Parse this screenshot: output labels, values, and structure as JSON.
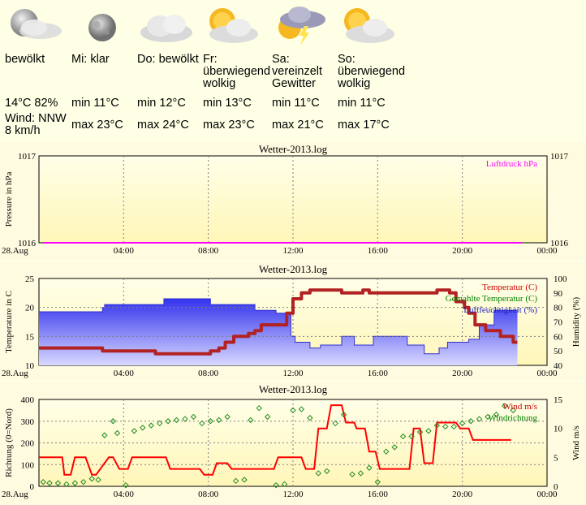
{
  "forecast": {
    "days": [
      {
        "icon": "moon-cloudy-icon",
        "condition": "bewölkt",
        "line1": "14°C 82%",
        "line2": "Wind: NNW 8 km/h"
      },
      {
        "icon": "moon-icon",
        "condition": "Mi: klar",
        "min": "min 11°C",
        "max": "max 23°C"
      },
      {
        "icon": "cloud-icon",
        "condition": "Do: bewölkt",
        "min": "min 12°C",
        "max": "max 24°C"
      },
      {
        "icon": "sun-cloud-icon",
        "condition": "Fr: überwiegend wolkig",
        "min": "min 13°C",
        "max": "max 23°C"
      },
      {
        "icon": "thunderstorm-icon",
        "condition": "Sa: vereinzelt Gewitter",
        "min": "min 11°C",
        "max": "max 21°C"
      },
      {
        "icon": "sun-cloud-icon",
        "condition": "So: überwiegend wolkig",
        "min": "min 11°C",
        "max": "max 17°C"
      }
    ]
  },
  "colors": {
    "pressure": "#ff00ff",
    "temperature": "#b22222",
    "temperature_label": "#cc0000",
    "humidity": "#4040ff",
    "dew": "#008000",
    "wind": "#ff0000",
    "direction": "#228b22",
    "grid": "#808080"
  },
  "chart_data": [
    {
      "type": "line",
      "title": "Wetter-2013.log",
      "ylabel": "Pressure in hPa",
      "ylim": [
        1016,
        1017
      ],
      "y_ticks": [
        "1016",
        "1017"
      ],
      "y2_ticks": [
        "1016",
        "1017"
      ],
      "x_ticks": [
        "28.Aug",
        "04:00",
        "08:00",
        "12:00",
        "16:00",
        "20:00",
        "00:00"
      ],
      "series": [
        {
          "name": "Luftdruck hPa",
          "x": [
            0.2,
            22.8
          ],
          "y": [
            1016,
            1016
          ]
        }
      ]
    },
    {
      "type": "line",
      "title": "Wetter-2013.log",
      "ylabel": "Temperature in C",
      "y2label": "Humidity (%)",
      "ylim": [
        10,
        25
      ],
      "y2lim": [
        40,
        100
      ],
      "y_ticks": [
        "10",
        "15",
        "20",
        "25"
      ],
      "y2_ticks": [
        "40",
        "50",
        "60",
        "70",
        "80",
        "90",
        "100"
      ],
      "x_ticks": [
        "28.Aug",
        "04:00",
        "08:00",
        "12:00",
        "16:00",
        "20:00",
        "00:00"
      ],
      "series": [
        {
          "name": "Temperatur (C)",
          "x": [
            0,
            3,
            3,
            3.1,
            3.1,
            5.4,
            5.4,
            5.5,
            5.5,
            8.1,
            8.1,
            8.5,
            8.5,
            8.8,
            8.8,
            9.2,
            9.2,
            9.9,
            9.9,
            10.2,
            10.2,
            10.5,
            10.5,
            11.7,
            11.7,
            12.0,
            12.0,
            12.4,
            12.4,
            12.8,
            12.8,
            14.3,
            14.3,
            15.3,
            15.3,
            15.6,
            15.6,
            18.8,
            18.8,
            19.4,
            19.4,
            19.7,
            19.7,
            20.1,
            20.1,
            20.3,
            20.3,
            20.6,
            20.6,
            21.1,
            21.1,
            21.8,
            21.8,
            22.4,
            22.4,
            22.6
          ],
          "y": [
            13,
            13,
            12.5,
            12.5,
            12.5,
            12.5,
            12.5,
            12.5,
            12,
            12,
            12.5,
            12.5,
            13,
            13,
            14,
            14,
            15,
            15,
            15.5,
            15.5,
            16,
            16,
            17,
            17,
            19,
            19,
            21.5,
            21.5,
            22.5,
            22.5,
            23,
            23,
            22.5,
            22.5,
            23,
            23,
            22.5,
            22.5,
            23,
            23,
            22.5,
            22.5,
            21,
            21,
            20,
            20,
            19,
            19,
            17,
            17,
            16,
            16,
            15,
            15,
            14,
            14
          ]
        },
        {
          "name": "Gemahlte Temperatur (C)",
          "x": [],
          "y": []
        },
        {
          "name": "Luftfeuchtigkeit (%)",
          "x": [
            0,
            3,
            3,
            3.1,
            3.1,
            5.9,
            5.9,
            8.1,
            8.1,
            10.2,
            10.2,
            11.2,
            11.2,
            11.9,
            11.9,
            12.1,
            12.1,
            12.8,
            12.8,
            13.3,
            13.3,
            14.3,
            14.3,
            14.9,
            14.9,
            15.8,
            15.8,
            17.4,
            17.4,
            18.2,
            18.2,
            18.9,
            18.9,
            19.3,
            19.3,
            20.3,
            20.3,
            20.8,
            20.8,
            21.5,
            21.5,
            22.6
          ],
          "y": [
            77,
            77,
            80,
            80,
            82,
            82,
            86,
            86,
            82,
            82,
            78,
            78,
            76,
            76,
            60,
            60,
            56,
            56,
            52,
            52,
            54,
            54,
            60,
            60,
            54,
            54,
            60,
            60,
            54,
            54,
            48,
            48,
            52,
            52,
            56,
            56,
            58,
            58,
            68,
            68,
            78,
            78
          ]
        }
      ]
    },
    {
      "type": "line",
      "title": "Wetter-2013.log",
      "ylabel": "Richtung (0=Nord)",
      "y2label": "Wind m/s",
      "ylim": [
        0,
        400
      ],
      "y2lim": [
        0,
        15
      ],
      "y_ticks": [
        "0",
        "100",
        "200",
        "300",
        "400"
      ],
      "y2_ticks": [
        "0",
        "5",
        "10",
        "15"
      ],
      "x_ticks": [
        "28.Aug",
        "04:00",
        "08:00",
        "12:00",
        "16:00",
        "20:00",
        "00:00"
      ],
      "series": [
        {
          "name": "Wind m/s",
          "x": [
            0,
            1.1,
            1.2,
            1.5,
            1.7,
            2.2,
            2.5,
            2.7,
            3.3,
            3.5,
            3.8,
            4.2,
            4.4,
            6.0,
            6.2,
            7.6,
            7.8,
            8.2,
            8.4,
            8.9,
            9.1,
            10.1,
            10.3,
            11.1,
            11.3,
            12.4,
            12.6,
            13.0,
            13.2,
            13.6,
            13.8,
            14.3,
            14.5,
            14.9,
            15.0,
            15.4,
            15.6,
            15.9,
            16.1,
            16.9,
            17.1,
            17.5,
            17.7,
            18.0,
            18.2,
            18.6,
            18.8,
            19.7,
            19.9,
            20.3,
            20.5,
            22.3
          ],
          "y": [
            5,
            5,
            2,
            2,
            5,
            5,
            2,
            2,
            5,
            5,
            3,
            3,
            5,
            5,
            3,
            3,
            2,
            2,
            4,
            4,
            3,
            3,
            3,
            3,
            5,
            5,
            3,
            3,
            10,
            10,
            14,
            14,
            11,
            11,
            10,
            10,
            6,
            6,
            3,
            3,
            3,
            3,
            10,
            10,
            4,
            4,
            11,
            11,
            10,
            10,
            8,
            8
          ]
        },
        {
          "name": "Windrichtung",
          "x": [
            0.2,
            0.5,
            0.9,
            1.3,
            1.7,
            2.1,
            2.5,
            2.8,
            3.1,
            3.5,
            3.7,
            4.1,
            4.5,
            4.9,
            5.3,
            5.7,
            6.1,
            6.5,
            6.9,
            7.3,
            7.7,
            8.1,
            8.5,
            8.9,
            9.3,
            9.7,
            10.0,
            10.4,
            10.8,
            11.2,
            11.6,
            12.0,
            12.4,
            12.8,
            13.2,
            13.6,
            14.0,
            14.4,
            14.8,
            15.2,
            15.6,
            16.0,
            16.4,
            16.8,
            17.2,
            17.6,
            18.0,
            18.4,
            18.8,
            19.2,
            19.6,
            20.0,
            20.4,
            20.8,
            21.2,
            21.6,
            22.0,
            22.4
          ],
          "y": [
            20,
            15,
            15,
            10,
            15,
            20,
            35,
            30,
            235,
            300,
            245,
            5,
            255,
            270,
            280,
            290,
            300,
            305,
            310,
            320,
            290,
            300,
            305,
            320,
            25,
            30,
            305,
            360,
            320,
            5,
            10,
            350,
            355,
            315,
            60,
            70,
            290,
            330,
            55,
            60,
            85,
            20,
            160,
            180,
            230,
            230,
            250,
            255,
            280,
            275,
            275,
            290,
            300,
            310,
            320,
            330,
            370,
            350
          ]
        }
      ]
    }
  ]
}
